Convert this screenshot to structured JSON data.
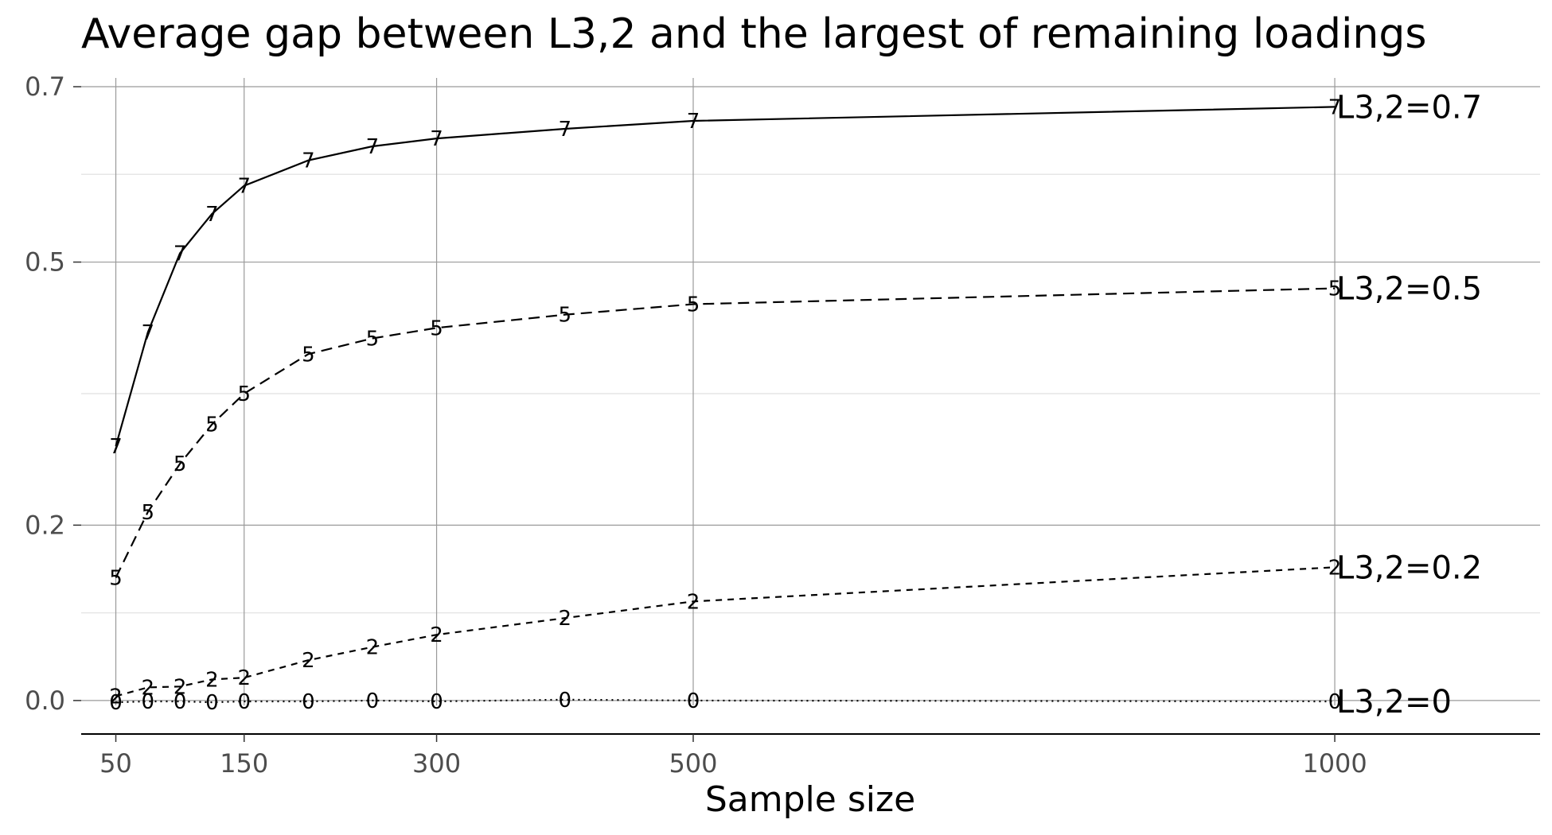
{
  "chart_data": {
    "type": "line",
    "title": "Average gap between L3,2 and the largest of remaining loadings",
    "xlabel": "Sample size",
    "ylabel": "",
    "xlim": [
      23,
      1160
    ],
    "ylim": [
      -0.04,
      0.71
    ],
    "x_ticks": [
      50,
      150,
      300,
      500,
      1000
    ],
    "x_tick_labels": [
      "50",
      "150",
      "300",
      "500",
      "1000"
    ],
    "y_ticks": [
      0.0,
      0.2,
      0.5,
      0.7
    ],
    "y_tick_labels": [
      "0.0",
      "0.2",
      "0.5",
      "0.7"
    ],
    "y_minor_ticks": [
      0.1,
      0.35,
      0.6
    ],
    "grid": true,
    "x": [
      50,
      75,
      100,
      125,
      150,
      200,
      250,
      300,
      400,
      500,
      1000
    ],
    "series": [
      {
        "name": "L3,2=0.7",
        "marker": "7",
        "dash": "solid",
        "values": [
          0.29,
          0.42,
          0.51,
          0.555,
          0.587,
          0.616,
          0.632,
          0.641,
          0.652,
          0.661,
          0.677
        ]
      },
      {
        "name": "L3,2=0.5",
        "marker": "5",
        "dash": "long-dash",
        "values": [
          0.14,
          0.215,
          0.27,
          0.315,
          0.35,
          0.395,
          0.413,
          0.425,
          0.44,
          0.452,
          0.47
        ]
      },
      {
        "name": "L3,2=0.2",
        "marker": "2",
        "dash": "short-dash",
        "values": [
          0.005,
          0.015,
          0.016,
          0.024,
          0.026,
          0.046,
          0.061,
          0.075,
          0.094,
          0.113,
          0.152
        ]
      },
      {
        "name": "L3,2=0",
        "marker": "0",
        "dash": "dotted",
        "values": [
          -0.002,
          -0.001,
          -0.001,
          -0.002,
          -0.001,
          -0.001,
          0.0,
          -0.001,
          0.001,
          0.0,
          -0.001
        ]
      }
    ],
    "colors": {
      "line": "#000000",
      "grid_major": "#9a9a9a",
      "grid_minor": "#e6e6e6",
      "tick_text": "#4d4d4d",
      "background": "#ffffff"
    }
  }
}
